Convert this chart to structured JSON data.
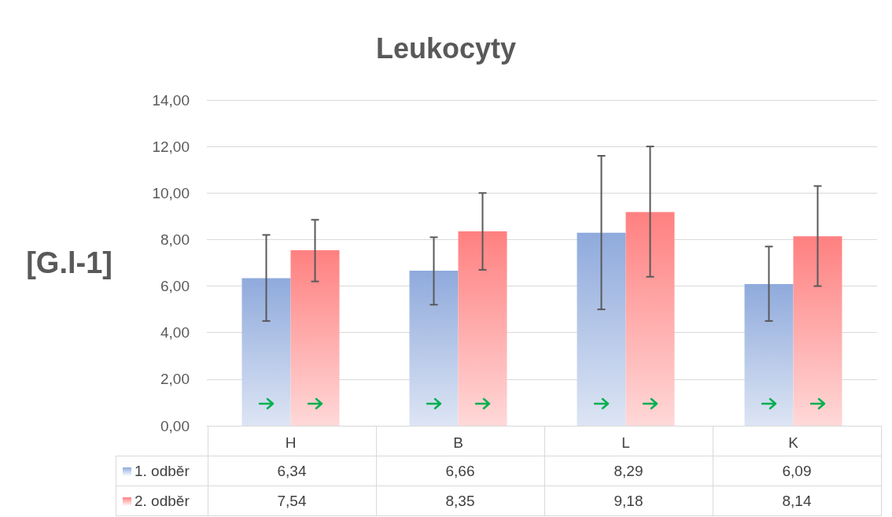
{
  "chart_data": {
    "type": "bar",
    "title": "Leukocyty",
    "ylabel": "[G.l-1]",
    "categories": [
      "H",
      "B",
      "L",
      "K"
    ],
    "series": [
      {
        "name": "1. odběr",
        "color": "#8faadc",
        "values": [
          6.34,
          6.66,
          8.29,
          6.09
        ],
        "value_labels": [
          "6,34",
          "6,66",
          "8,29",
          "6,09"
        ],
        "errors": [
          [
            4.5,
            8.2
          ],
          [
            5.2,
            8.1
          ],
          [
            5.0,
            11.6
          ],
          [
            4.5,
            7.7
          ]
        ]
      },
      {
        "name": "2. odběr",
        "color": "#ff8080",
        "values": [
          7.54,
          8.35,
          9.18,
          8.14
        ],
        "value_labels": [
          "7,54",
          "8,35",
          "9,18",
          "8,14"
        ],
        "errors": [
          [
            6.2,
            8.85
          ],
          [
            6.7,
            10.0
          ],
          [
            6.4,
            12.0
          ],
          [
            6.0,
            10.3
          ]
        ]
      }
    ],
    "ylim": [
      0,
      14
    ],
    "yticks": [
      {
        "value": 0,
        "label": "0,00"
      },
      {
        "value": 2,
        "label": "2,00"
      },
      {
        "value": 4,
        "label": "4,00"
      },
      {
        "value": 6,
        "label": "6,00"
      },
      {
        "value": 8,
        "label": "8,00"
      },
      {
        "value": 10,
        "label": "10,00"
      },
      {
        "value": 12,
        "label": "12,00"
      },
      {
        "value": 14,
        "label": "14,00"
      }
    ],
    "grid": "y",
    "legend": "bottom"
  }
}
